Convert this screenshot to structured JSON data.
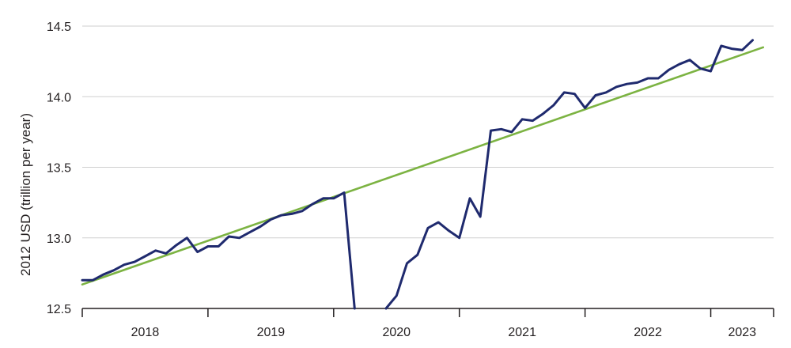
{
  "chart_data": {
    "type": "line",
    "ylabel": "2012 USD (trillion per year)",
    "ylim": [
      12.5,
      14.5
    ],
    "yticks": [
      "12.5",
      "13.0",
      "13.5",
      "14.0",
      "14.5"
    ],
    "xlim": [
      "2018-01",
      "2023-07"
    ],
    "x_tick_labels": [
      "2018",
      "2019",
      "2020",
      "2021",
      "2022",
      "2023"
    ],
    "x_year_boundaries": [
      "2018-01",
      "2019-01",
      "2020-01",
      "2021-01",
      "2022-01",
      "2023-01",
      "2024-01"
    ],
    "grid": "horizontal",
    "colors": {
      "series": "#1f2a6e",
      "trend": "#7cb342",
      "grid": "#cfcfcf",
      "axis": "#231f20"
    },
    "series": [
      {
        "values": [
          {
            "x": "2018-01",
            "y": 12.7
          },
          {
            "x": "2018-02",
            "y": 12.7
          },
          {
            "x": "2018-03",
            "y": 12.74
          },
          {
            "x": "2018-04",
            "y": 12.77
          },
          {
            "x": "2018-05",
            "y": 12.81
          },
          {
            "x": "2018-06",
            "y": 12.83
          },
          {
            "x": "2018-07",
            "y": 12.87
          },
          {
            "x": "2018-08",
            "y": 12.91
          },
          {
            "x": "2018-09",
            "y": 12.89
          },
          {
            "x": "2018-10",
            "y": 12.95
          },
          {
            "x": "2018-11",
            "y": 13.0
          },
          {
            "x": "2018-12",
            "y": 12.9
          },
          {
            "x": "2019-01",
            "y": 12.94
          },
          {
            "x": "2019-02",
            "y": 12.94
          },
          {
            "x": "2019-03",
            "y": 13.01
          },
          {
            "x": "2019-04",
            "y": 13.0
          },
          {
            "x": "2019-05",
            "y": 13.04
          },
          {
            "x": "2019-06",
            "y": 13.08
          },
          {
            "x": "2019-07",
            "y": 13.13
          },
          {
            "x": "2019-08",
            "y": 13.16
          },
          {
            "x": "2019-09",
            "y": 13.17
          },
          {
            "x": "2019-10",
            "y": 13.19
          },
          {
            "x": "2019-11",
            "y": 13.24
          },
          {
            "x": "2019-12",
            "y": 13.28
          },
          {
            "x": "2020-01",
            "y": 13.28
          },
          {
            "x": "2020-02",
            "y": 13.32
          },
          {
            "x": "2020-03",
            "y": 12.5
          },
          {
            "x": "2020-04",
            "y": null
          },
          {
            "x": "2020-05",
            "y": null
          },
          {
            "x": "2020-06",
            "y": 12.5
          },
          {
            "x": "2020-07",
            "y": 12.59
          },
          {
            "x": "2020-08",
            "y": 12.82
          },
          {
            "x": "2020-09",
            "y": 12.88
          },
          {
            "x": "2020-10",
            "y": 13.07
          },
          {
            "x": "2020-11",
            "y": 13.11
          },
          {
            "x": "2020-12",
            "y": 13.05
          },
          {
            "x": "2021-01",
            "y": 13.0
          },
          {
            "x": "2021-02",
            "y": 13.28
          },
          {
            "x": "2021-03",
            "y": 13.15
          },
          {
            "x": "2021-04",
            "y": 13.76
          },
          {
            "x": "2021-05",
            "y": 13.77
          },
          {
            "x": "2021-06",
            "y": 13.75
          },
          {
            "x": "2021-07",
            "y": 13.84
          },
          {
            "x": "2021-08",
            "y": 13.83
          },
          {
            "x": "2021-09",
            "y": 13.88
          },
          {
            "x": "2021-10",
            "y": 13.94
          },
          {
            "x": "2021-11",
            "y": 14.03
          },
          {
            "x": "2021-12",
            "y": 14.02
          },
          {
            "x": "2022-01",
            "y": 13.92
          },
          {
            "x": "2022-02",
            "y": 14.01
          },
          {
            "x": "2022-03",
            "y": 14.03
          },
          {
            "x": "2022-04",
            "y": 14.07
          },
          {
            "x": "2022-05",
            "y": 14.09
          },
          {
            "x": "2022-06",
            "y": 14.1
          },
          {
            "x": "2022-07",
            "y": 14.13
          },
          {
            "x": "2022-08",
            "y": 14.13
          },
          {
            "x": "2022-09",
            "y": 14.19
          },
          {
            "x": "2022-10",
            "y": 14.23
          },
          {
            "x": "2022-11",
            "y": 14.26
          },
          {
            "x": "2022-12",
            "y": 14.2
          },
          {
            "x": "2023-01",
            "y": 14.18
          },
          {
            "x": "2023-02",
            "y": 14.36
          },
          {
            "x": "2023-03",
            "y": 14.34
          },
          {
            "x": "2023-04",
            "y": 14.33
          },
          {
            "x": "2023-05",
            "y": 14.4
          }
        ]
      },
      {
        "values": [
          {
            "x": "2018-01",
            "y": 12.67
          },
          {
            "x": "2023-06",
            "y": 14.35
          }
        ]
      }
    ]
  }
}
